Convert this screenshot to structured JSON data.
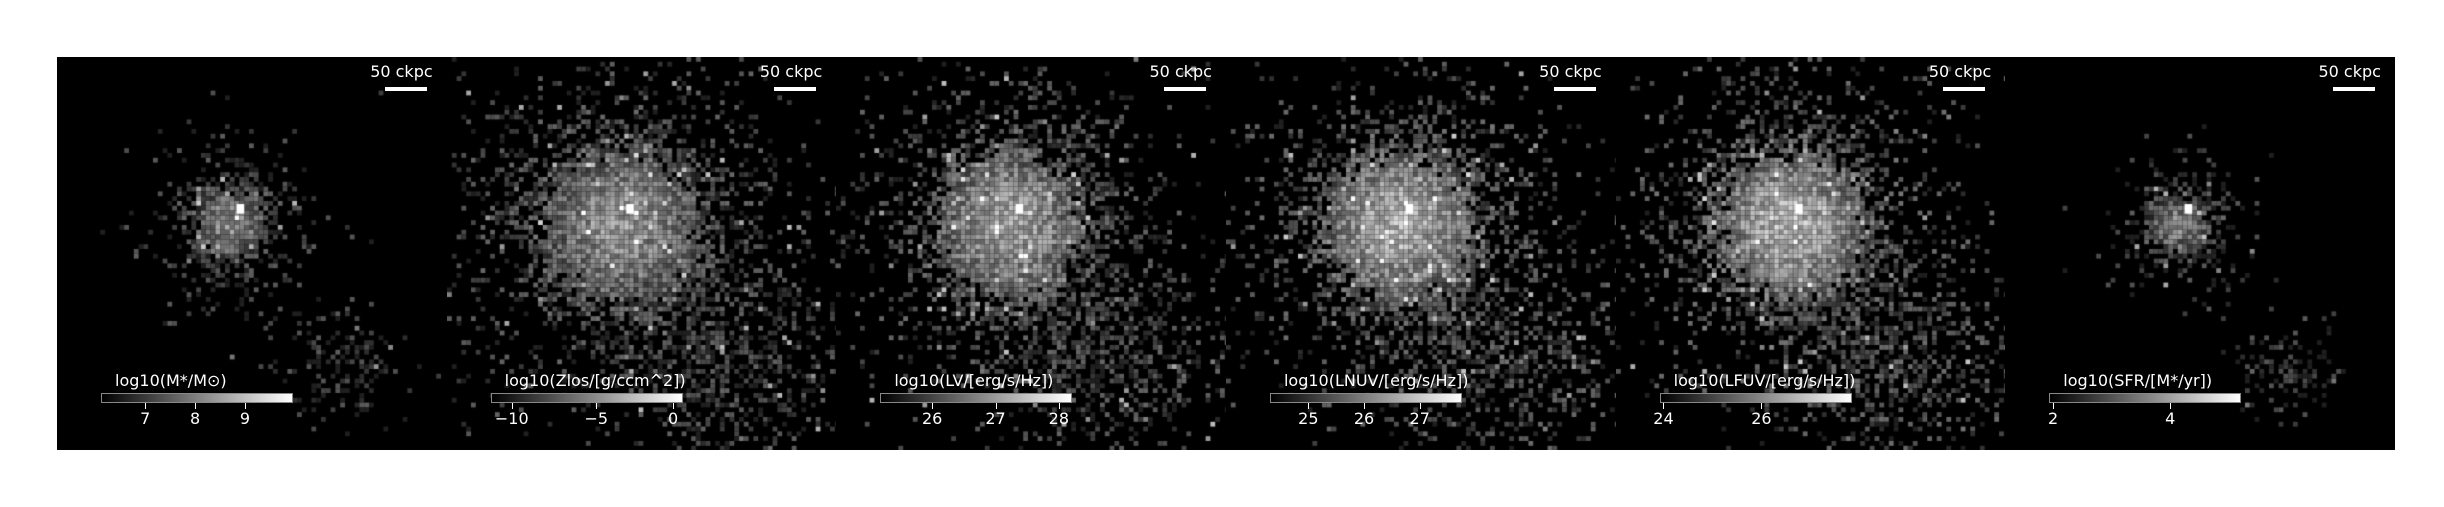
{
  "figure": {
    "panels": [
      {
        "id": "stellar-mass",
        "title": "log10(M*/M⊙)",
        "scale_label": "50 ckpc",
        "ticks": [
          {
            "label": "7",
            "frac": 0.23
          },
          {
            "label": "8",
            "frac": 0.49
          },
          {
            "label": "9",
            "frac": 0.75
          }
        ],
        "cmap": "gray",
        "brightness": 0.55,
        "spread": 0.35
      },
      {
        "id": "metallicity",
        "title": "log10(Zlos/[g/ccm^2])",
        "scale_label": "50 ckpc",
        "ticks": [
          {
            "label": "−10",
            "frac": 0.11
          },
          {
            "label": "−5",
            "frac": 0.55
          },
          {
            "label": "0",
            "frac": 0.95
          }
        ],
        "cmap": "gray",
        "brightness": 0.6,
        "spread": 0.75
      },
      {
        "id": "lum-v",
        "title": "log10(LV/[erg/s/Hz])",
        "scale_label": "50 ckpc",
        "ticks": [
          {
            "label": "26",
            "frac": 0.27
          },
          {
            "label": "27",
            "frac": 0.6
          },
          {
            "label": "28",
            "frac": 0.93
          }
        ],
        "cmap": "gray",
        "brightness": 0.65,
        "spread": 0.7
      },
      {
        "id": "lum-nuv",
        "title": "log10(LNUV/[erg/s/Hz])",
        "scale_label": "50 ckpc",
        "ticks": [
          {
            "label": "25",
            "frac": 0.2
          },
          {
            "label": "26",
            "frac": 0.49
          },
          {
            "label": "27",
            "frac": 0.78
          }
        ],
        "cmap": "gray",
        "brightness": 0.7,
        "spread": 0.72
      },
      {
        "id": "lum-fuv",
        "title": "log10(LFUV/[erg/s/Hz])",
        "scale_label": "50 ckpc",
        "ticks": [
          {
            "label": "24",
            "frac": 0.02
          },
          {
            "label": "26",
            "frac": 0.53
          }
        ],
        "cmap": "gray",
        "brightness": 0.72,
        "spread": 0.72
      },
      {
        "id": "sfr",
        "title": "log10(SFR/[M*/yr])",
        "scale_label": "50 ckpc",
        "ticks": [
          {
            "label": "2",
            "frac": 0.02
          },
          {
            "label": "4",
            "frac": 0.63
          }
        ],
        "cmap": "gray",
        "brightness": 0.5,
        "spread": 0.3
      }
    ]
  }
}
